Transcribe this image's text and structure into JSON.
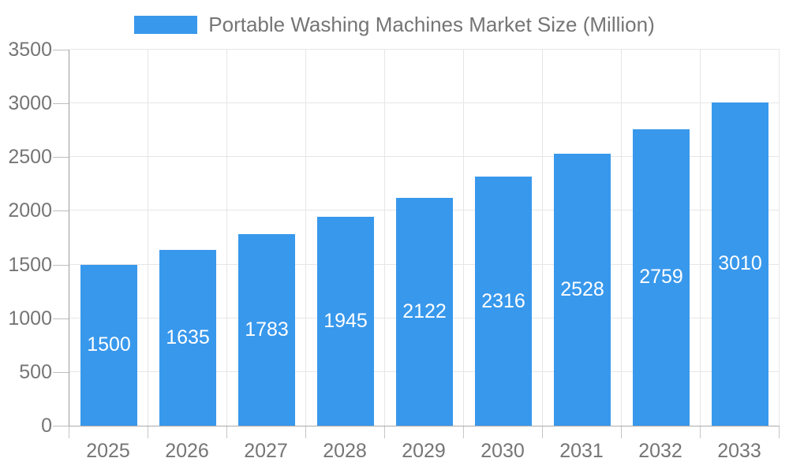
{
  "chart_data": {
    "type": "bar",
    "title": "Portable Washing Machines Market Size (Million)",
    "categories": [
      "2025",
      "2026",
      "2027",
      "2028",
      "2029",
      "2030",
      "2031",
      "2032",
      "2033"
    ],
    "values": [
      1500,
      1635,
      1783,
      1945,
      2122,
      2316,
      2528,
      2759,
      3010
    ],
    "value_labels": [
      "1500",
      "1635",
      "1783",
      "1945",
      "2122",
      "2316",
      "2528",
      "2759",
      "3010"
    ],
    "yticks": [
      0,
      500,
      1000,
      1500,
      2000,
      2500,
      3000,
      3500
    ],
    "ylim": [
      0,
      3500
    ],
    "xlabel": "",
    "ylabel": "",
    "grid": true,
    "legend_position": "top-center",
    "colors": {
      "bar": "#3898EC",
      "value_label": "#FFFFFF",
      "axis_text": "#757575",
      "gridline": "#E6E6E6",
      "axis_line": "#9E9E9E",
      "background": "#FFFFFF"
    }
  }
}
